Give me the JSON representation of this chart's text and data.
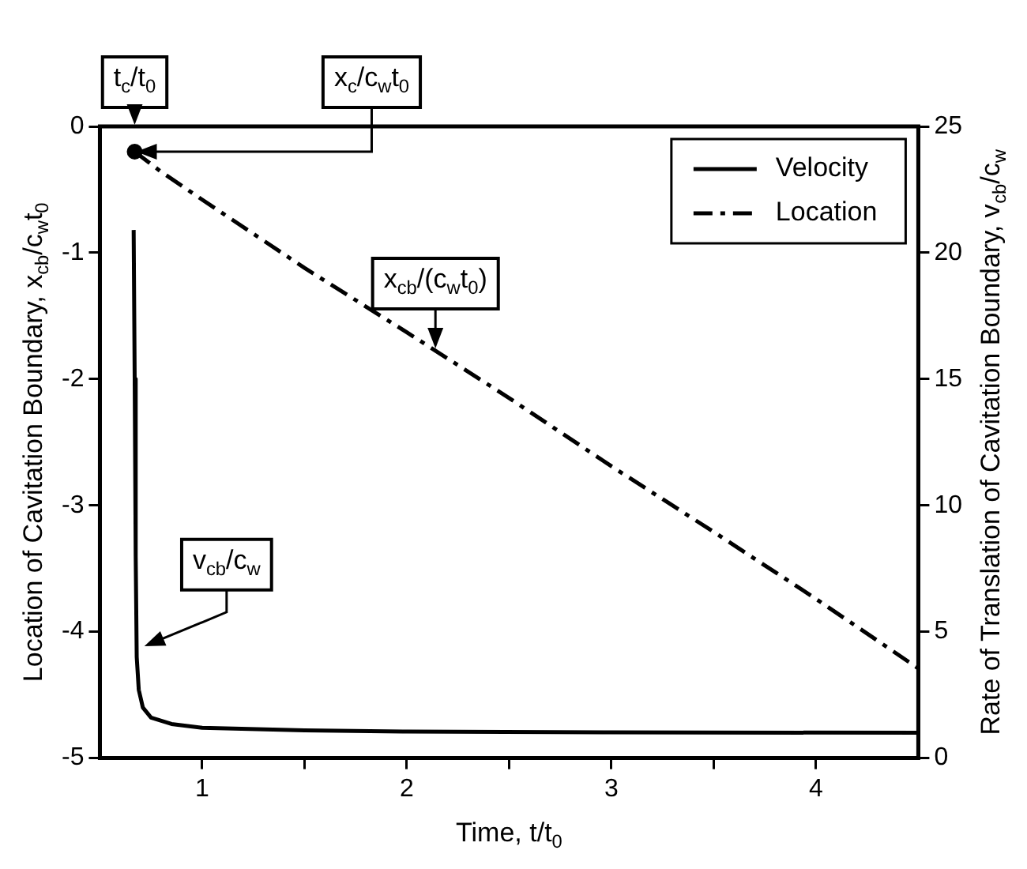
{
  "chart_data": {
    "type": "line",
    "xlabel": "Time, t/t$_{0}$",
    "ylabel": "Location of Cavitation Boundary, x$_{cb}$/c$_{w}$t$_{0}$",
    "y2label": "Rate of Translation of Cavitation Boundary, v$_{cb}$/c$_{w}$",
    "xlim": [
      0.5,
      4.5
    ],
    "xticks": [
      1,
      {
        "value": 1.5,
        "label": null
      },
      2,
      {
        "value": 2.5,
        "label": null
      },
      3,
      {
        "value": 3.5,
        "label": null
      },
      4
    ],
    "ylim": [
      -5,
      0
    ],
    "yticks": [
      -5,
      -4,
      -3,
      -2,
      -1,
      0
    ],
    "y2lim": [
      0,
      25
    ],
    "y2ticks": [
      0,
      5,
      10,
      15,
      20,
      25
    ],
    "grid": false,
    "legend": "top right",
    "series": [
      {
        "name": "Velocity",
        "axis": "y2",
        "color": "#000000",
        "line_style": "solid",
        "x": [
          0.665,
          0.67,
          0.675,
          0.68,
          0.69,
          0.71,
          0.75,
          0.85,
          1,
          1.5,
          2,
          3,
          4.5
        ],
        "values": [
          20.9,
          15,
          8,
          4,
          2.7,
          2,
          1.6,
          1.35,
          1.2,
          1.1,
          1.05,
          1.02,
          1.0
        ]
      },
      {
        "name": "Location",
        "color": "#000000",
        "line_style": "dashed",
        "x": [
          0.67,
          0.8,
          1,
          1.5,
          2,
          2.5,
          3,
          3.5,
          4,
          4.5
        ],
        "values": [
          -0.2,
          -0.36,
          -0.58,
          -1.12,
          -1.63,
          -2.15,
          -2.69,
          -3.21,
          -3.74,
          -4.29
        ]
      },
      {
        "type": "scatter",
        "color": "#000000",
        "marker": "circle",
        "x": [
          0.67
        ],
        "values": [
          -0.2
        ]
      }
    ],
    "annotations": [
      "t$_{c}$/t$_{0}$",
      {
        "text": "x$_{c}$/c$_{w}$t$_{0}$",
        "x": 0.67,
        "y": -0.2
      },
      {
        "text": "x$_{cb}$/(c$_{w}$t$_{0}$)",
        "x": 2.14,
        "y": -1.77
      },
      {
        "text": "v$_{cb}$/c$_{w}$",
        "x": 0.71,
        "y": -4.12
      }
    ]
  }
}
